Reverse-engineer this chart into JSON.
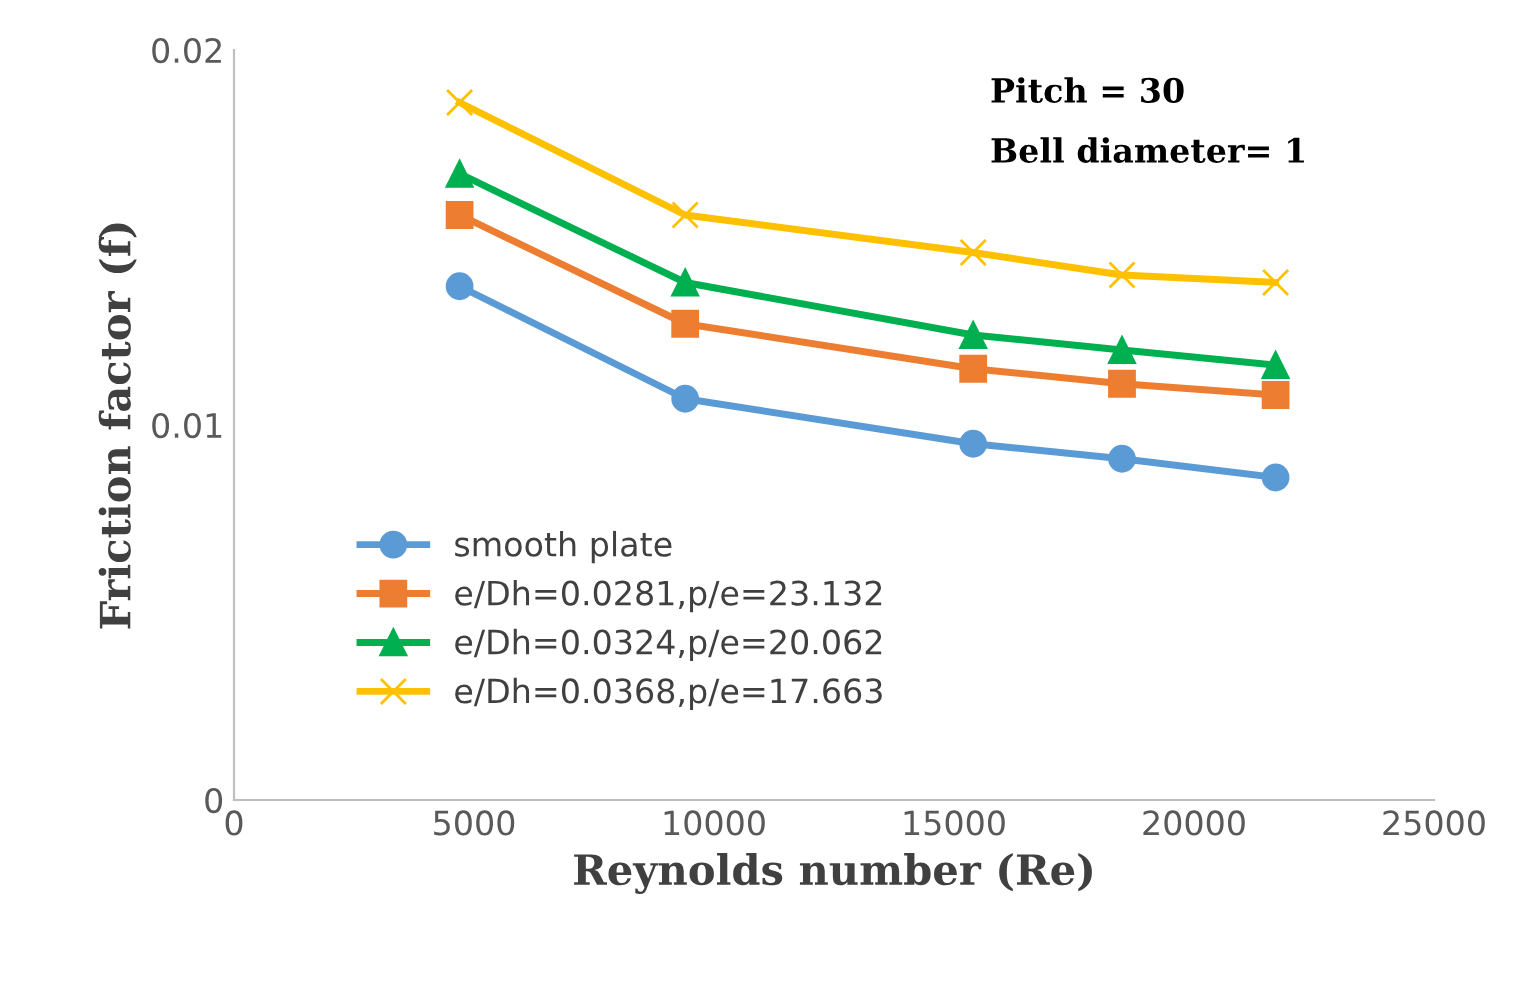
{
  "chart_data": {
    "type": "line",
    "xlabel": "Reynolds number (Re)",
    "ylabel": "Friction factor (f)",
    "annotations": [
      "Pitch = 30",
      "Bell diameter= 1"
    ],
    "x": [
      4700,
      9400,
      15400,
      18500,
      21700
    ],
    "series": [
      {
        "name": "smooth plate",
        "color": "#5b9bd5",
        "marker": "circle",
        "values": [
          0.0137,
          0.0107,
          0.0095,
          0.0091,
          0.0086
        ]
      },
      {
        "name": "e/Dh=0.0281,p/e=23.132",
        "color": "#ed7d31",
        "marker": "square",
        "values": [
          0.0156,
          0.0127,
          0.0115,
          0.0111,
          0.0108
        ]
      },
      {
        "name": "e/Dh=0.0324,p/e=20.062",
        "color": "#00b050",
        "marker": "triangle",
        "values": [
          0.0167,
          0.0138,
          0.0124,
          0.012,
          0.0116
        ]
      },
      {
        "name": "e/Dh=0.0368,p/e=17.663",
        "color": "#ffc000",
        "marker": "cross",
        "values": [
          0.0186,
          0.0156,
          0.0146,
          0.014,
          0.0138
        ]
      }
    ],
    "xlim": [
      0,
      25000
    ],
    "xticks": [
      0,
      5000,
      10000,
      15000,
      20000,
      25000
    ],
    "ylim": [
      0,
      0.02
    ],
    "yticks": [
      {
        "value": 0,
        "label": "0"
      },
      {
        "value": 0.01,
        "label": "0.01"
      },
      {
        "value": 0.02,
        "label": "0.02"
      }
    ],
    "grid": false,
    "legend": "bottom left"
  }
}
